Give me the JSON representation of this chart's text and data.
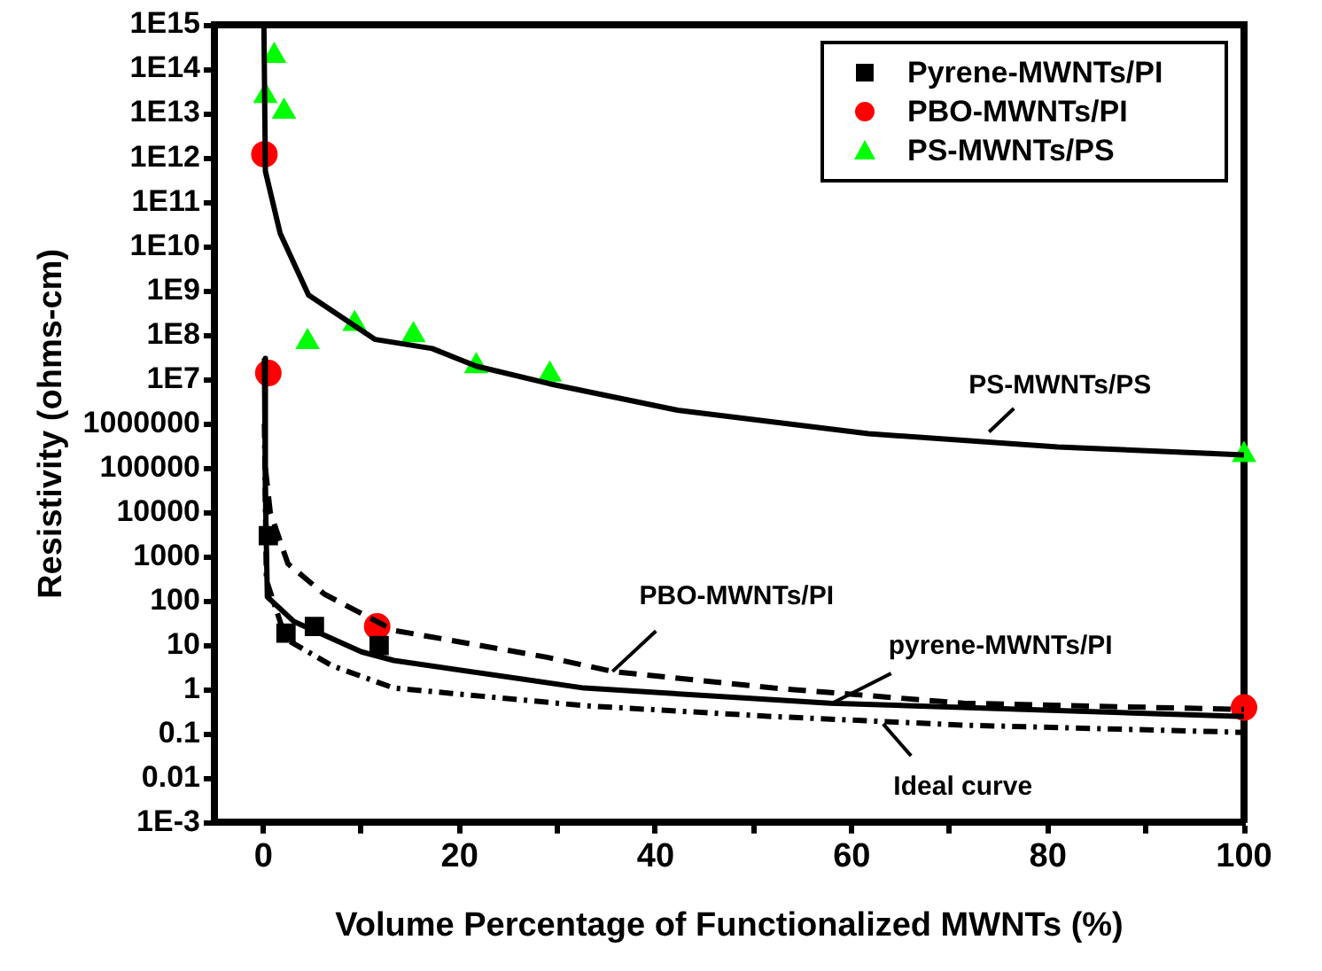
{
  "chart_data": {
    "type": "scatter",
    "xlabel": "Volume Percentage of Functionalized MWNTs (%)",
    "ylabel": "Resistivity (ohms-cm)",
    "xlim": [
      -5,
      100
    ],
    "xticks": [
      0,
      {
        "value": 10,
        "label": null
      },
      20,
      {
        "value": 30,
        "label": null
      },
      40,
      {
        "value": 50,
        "label": null
      },
      60,
      {
        "value": 70,
        "label": null
      },
      80,
      {
        "value": 90,
        "label": null
      },
      100
    ],
    "ylim": [
      0.001,
      1000000000000000.0
    ],
    "yticks": [
      {
        "value": 1000000000000000.0,
        "label": "1E15"
      },
      {
        "value": 100000000000000.0,
        "label": "1E14"
      },
      {
        "value": 10000000000000.0,
        "label": "1E13"
      },
      {
        "value": 1000000000000.0,
        "label": "1E12"
      },
      {
        "value": 100000000000.0,
        "label": "1E11"
      },
      {
        "value": 10000000000.0,
        "label": "1E10"
      },
      {
        "value": 1000000000.0,
        "label": "1E9"
      },
      {
        "value": 100000000.0,
        "label": "1E8"
      },
      {
        "value": 10000000.0,
        "label": "1E7"
      },
      1000000,
      100000,
      10000,
      1000,
      100,
      10,
      1,
      0.1,
      0.01,
      {
        "value": 0.001,
        "label": "1E-3"
      }
    ],
    "log": "y",
    "grid": false,
    "legend": "top right",
    "series": [
      {
        "name": "Pyrene-MWNTs/PI",
        "marker": "square",
        "color": "#000000",
        "x": [
          0.5,
          2.3,
          5.2,
          11.8
        ],
        "values": [
          3000,
          19,
          27,
          10
        ]
      },
      {
        "name": "PBO-MWNTs/PI",
        "marker": "circle",
        "color": "#ff0000",
        "x": [
          0.1,
          0.5,
          11.6,
          100
        ],
        "values": [
          1200000000000.0,
          14000000.0,
          27,
          0.4
        ]
      },
      {
        "name": "PS-MWNTs/PS",
        "marker": "triangle",
        "color": "#00ff00",
        "x": [
          0.2,
          1.1,
          2.1,
          4.5,
          9.3,
          15.3,
          21.7,
          29.2,
          100
        ],
        "values": [
          25000000000000.0,
          200000000000000.0,
          11000000000000.0,
          70000000.0,
          180000000.0,
          100000000.0,
          20000000.0,
          13000000.0,
          200000.0
        ]
      },
      {
        "type": "line",
        "line_style": "solid",
        "color": "#000000",
        "x": [
          0.05,
          0.2,
          1.7,
          4.6,
          11.4,
          17.2,
          21.7,
          29.2,
          42.4,
          61.7,
          81,
          100
        ],
        "values": [
          1000000000000000.0,
          500000000000.0,
          20000000000.0,
          800000000.0,
          80000000.0,
          50000000.0,
          20000000.0,
          8000000.0,
          2000000.0,
          600000.0,
          300000.0,
          200000.0
        ]
      },
      {
        "type": "line",
        "line_style": "dashed",
        "color": "#000000",
        "x": [
          0.2,
          0.7,
          2.5,
          6.2,
          13.3,
          28.8,
          35.6,
          52,
          71.4,
          100
        ],
        "values": [
          100000.0,
          10000.0,
          700,
          145,
          22,
          5.5,
          2.6,
          1.1,
          0.5,
          0.36
        ]
      },
      {
        "type": "line",
        "line_style": "solid",
        "color": "#000000",
        "x": [
          0.1,
          0.2,
          0.4,
          3.1,
          10,
          13.3,
          32.7,
          57.8,
          100
        ],
        "values": [
          30000000.0,
          30000.0,
          125,
          35,
          7.2,
          4.6,
          1.1,
          0.5,
          0.25
        ]
      },
      {
        "type": "line",
        "line_style": "dotted",
        "color": "#000000",
        "x": [
          0.1,
          0.3,
          2.3,
          7,
          13.3,
          32.7,
          52,
          71.4,
          100
        ],
        "values": [
          1000000.0,
          300,
          14,
          3.5,
          1.1,
          0.44,
          0.25,
          0.16,
          0.11
        ]
      }
    ],
    "annotations": [
      {
        "text": "PS-MWNTs/PS",
        "x": 74,
        "y": 660000
      },
      {
        "text": "PBO-MWNTs/PI",
        "x": 35.6,
        "y": 2.6
      },
      {
        "text": "pyrene-MWNTs/PI",
        "x": 58,
        "y": 0.5
      },
      {
        "text": "Ideal curve",
        "x": 63.2,
        "y": 0.17
      }
    ]
  }
}
